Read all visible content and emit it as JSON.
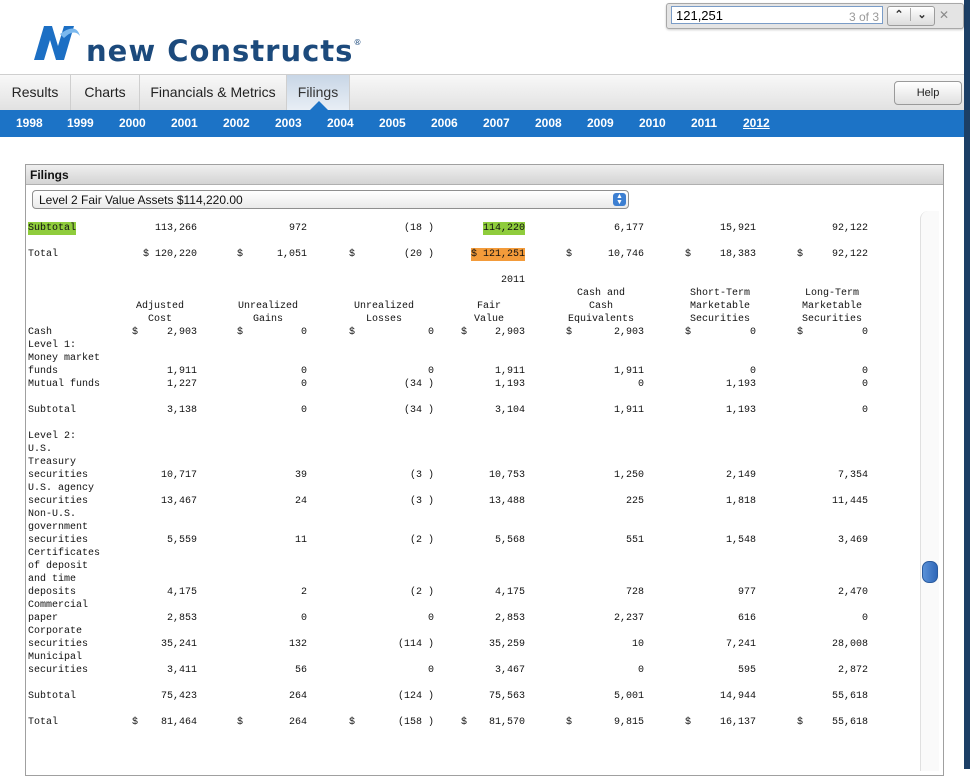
{
  "brand": {
    "name": "new Constructs",
    "mark": "®"
  },
  "find": {
    "query": "121,251",
    "count": "3 of 3"
  },
  "tabs": [
    {
      "label": "Results"
    },
    {
      "label": "Charts"
    },
    {
      "label": "Financials & Metrics"
    },
    {
      "label": "Filings"
    }
  ],
  "help": "Help",
  "years": [
    "1998",
    "1999",
    "2000",
    "2001",
    "2002",
    "2003",
    "2004",
    "2005",
    "2006",
    "2007",
    "2008",
    "2009",
    "2010",
    "2011",
    "2012"
  ],
  "current_year": "2012",
  "panel": {
    "title": "Filings",
    "selected": "Level 2 Fair Value Assets $114,220.00"
  },
  "table": {
    "top_rows": [
      {
        "label": "Subtotal",
        "cells": [
          "113,266",
          "972",
          "(18 )",
          "114,220",
          "6,177",
          "15,921",
          "92,122"
        ]
      },
      {
        "label": "Total",
        "cells": [
          "$ 120,220",
          "$",
          "1,051",
          "$",
          "(20 )",
          "$ 121,251",
          "$",
          "10,746",
          "$",
          "18,383",
          "$",
          "92,122"
        ]
      }
    ],
    "year_label": "2011",
    "headers": [
      [
        "Adjusted",
        "Cost"
      ],
      [
        "Unrealized",
        "Gains"
      ],
      [
        "Unrealized",
        "Losses"
      ],
      [
        "Fair",
        "Value"
      ],
      [
        "Cash and",
        "Cash",
        "Equivalents"
      ],
      [
        "Short-Term",
        "Marketable",
        "Securities"
      ],
      [
        "Long-Term",
        "Marketable",
        "Securities"
      ]
    ],
    "cash_row": {
      "label": "Cash",
      "cells": [
        "$",
        "2,903",
        "$",
        "0",
        "$",
        "0",
        "$",
        "2,903",
        "$",
        "2,903",
        "$",
        "0",
        "$",
        "0"
      ]
    },
    "lines": [
      {
        "label": "Level 1:"
      },
      {
        "label": "Money market"
      },
      {
        "label": "funds",
        "cells": [
          "1,911",
          "0",
          "0",
          "1,911",
          "1,911",
          "0",
          "0"
        ]
      },
      {
        "label": "Mutual funds",
        "cells": [
          "1,227",
          "0",
          "(34 )",
          "1,193",
          "0",
          "1,193",
          "0"
        ]
      },
      {
        "label": ""
      },
      {
        "label": "Subtotal",
        "cells": [
          "3,138",
          "0",
          "(34 )",
          "3,104",
          "1,911",
          "1,193",
          "0"
        ]
      },
      {
        "label": ""
      },
      {
        "label": "Level 2:"
      },
      {
        "label": "U.S."
      },
      {
        "label": "Treasury"
      },
      {
        "label": "securities",
        "cells": [
          "10,717",
          "39",
          "(3 )",
          "10,753",
          "1,250",
          "2,149",
          "7,354"
        ]
      },
      {
        "label": "U.S. agency"
      },
      {
        "label": "securities",
        "cells": [
          "13,467",
          "24",
          "(3 )",
          "13,488",
          "225",
          "1,818",
          "11,445"
        ]
      },
      {
        "label": "Non-U.S."
      },
      {
        "label": "government"
      },
      {
        "label": "securities",
        "cells": [
          "5,559",
          "11",
          "(2 )",
          "5,568",
          "551",
          "1,548",
          "3,469"
        ]
      },
      {
        "label": "Certificates"
      },
      {
        "label": "of deposit"
      },
      {
        "label": "and time"
      },
      {
        "label": "deposits",
        "cells": [
          "4,175",
          "2",
          "(2 )",
          "4,175",
          "728",
          "977",
          "2,470"
        ]
      },
      {
        "label": "Commercial"
      },
      {
        "label": "paper",
        "cells": [
          "2,853",
          "0",
          "0",
          "2,853",
          "2,237",
          "616",
          "0"
        ]
      },
      {
        "label": "Corporate"
      },
      {
        "label": "securities",
        "cells": [
          "35,241",
          "132",
          "(114 )",
          "35,259",
          "10",
          "7,241",
          "28,008"
        ]
      },
      {
        "label": "Municipal"
      },
      {
        "label": "securities",
        "cells": [
          "3,411",
          "56",
          "0",
          "3,467",
          "0",
          "595",
          "2,872"
        ]
      },
      {
        "label": ""
      },
      {
        "label": "Subtotal",
        "cells": [
          "75,423",
          "264",
          "(124 )",
          "75,563",
          "5,001",
          "14,944",
          "55,618"
        ]
      },
      {
        "label": ""
      },
      {
        "label": "Total",
        "cells": [
          "$",
          "81,464",
          "$",
          "264",
          "$",
          "(158 )",
          "$",
          "81,570",
          "$",
          "9,815",
          "$",
          "16,137",
          "$",
          "55,618"
        ]
      }
    ]
  }
}
